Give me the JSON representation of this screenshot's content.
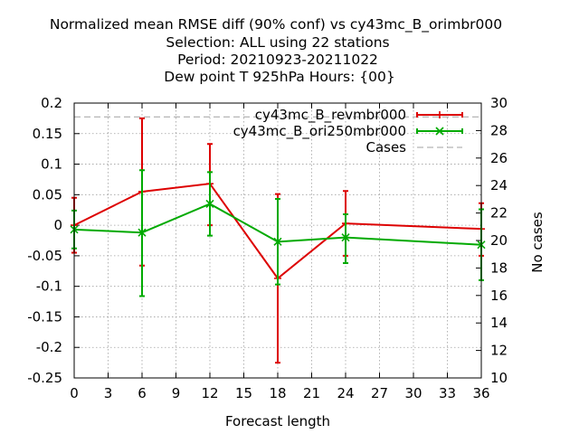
{
  "chart_data": {
    "type": "line",
    "title_lines": [
      "Normalized mean RMSE diff (90% conf) vs cy43mc_B_orimbr000",
      "Selection: ALL using    22 stations",
      "Period: 20210923-20211022",
      "Dew point T 925hPa   Hours: {00}"
    ],
    "xlabel": "Forecast length",
    "ylabel": "",
    "y2label": "No cases",
    "xlim": [
      0,
      36
    ],
    "ylim": [
      -0.25,
      0.2
    ],
    "y2lim": [
      10,
      30
    ],
    "x_ticks": [
      0,
      3,
      6,
      9,
      12,
      15,
      18,
      21,
      24,
      27,
      30,
      33,
      36
    ],
    "y_ticks": [
      -0.25,
      -0.2,
      -0.15,
      -0.1,
      -0.05,
      0,
      0.05,
      0.1,
      0.15,
      0.2
    ],
    "y_tick_labels": [
      "-0.25",
      "-0.2",
      "-0.15",
      "-0.1",
      "-0.05",
      "0",
      "0.05",
      "0.1",
      "0.15",
      "0.2"
    ],
    "y2_ticks": [
      10,
      12,
      14,
      16,
      18,
      20,
      22,
      24,
      26,
      28,
      30
    ],
    "grid": true,
    "legend_position": "top-right",
    "series": [
      {
        "name": "cy43mc_B_revmbr000",
        "color": "#dd0000",
        "marker": "plus",
        "axis": "y",
        "x": [
          0,
          6,
          12,
          18,
          24,
          36
        ],
        "y": [
          0.0,
          0.055,
          0.068,
          -0.087,
          0.003,
          -0.006
        ],
        "err_low": [
          -0.045,
          -0.066,
          0.0,
          -0.225,
          -0.05,
          -0.05
        ],
        "err_high": [
          0.045,
          0.175,
          0.133,
          0.051,
          0.056,
          0.036
        ]
      },
      {
        "name": "cy43mc_B_ori250mbr000",
        "color": "#00aa00",
        "marker": "x",
        "axis": "y",
        "x": [
          0,
          6,
          12,
          18,
          24,
          36
        ],
        "y": [
          -0.007,
          -0.012,
          0.035,
          -0.027,
          -0.02,
          -0.032
        ],
        "err_low": [
          -0.038,
          -0.116,
          -0.017,
          -0.097,
          -0.062,
          -0.09
        ],
        "err_high": [
          0.024,
          0.09,
          0.087,
          0.043,
          0.018,
          0.026
        ]
      },
      {
        "name": "Cases",
        "color": "#a0a0a0",
        "marker": "none",
        "dashed": true,
        "axis": "y2",
        "x": [
          0,
          6,
          12,
          18,
          24,
          36
        ],
        "y": [
          29,
          29,
          29,
          29,
          29,
          29
        ]
      }
    ]
  }
}
